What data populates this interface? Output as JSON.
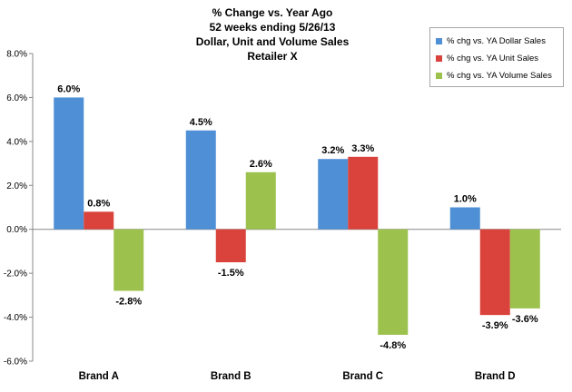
{
  "chart_data": {
    "type": "bar",
    "title_lines": [
      "% Change vs. Year Ago",
      "52 weeks ending 5/26/13",
      "Dollar, Unit and Volume Sales",
      "Retailer X"
    ],
    "categories": [
      "Brand A",
      "Brand B",
      "Brand C",
      "Brand D"
    ],
    "series": [
      {
        "name": "% chg vs. YA Dollar Sales",
        "values": [
          6.0,
          4.5,
          3.2,
          1.0
        ],
        "labels": [
          "6.0%",
          "4.5%",
          "3.2%",
          "1.0%"
        ],
        "color": "#4f8fd6"
      },
      {
        "name": "% chg vs. YA Unit Sales",
        "values": [
          0.8,
          -1.5,
          3.3,
          -3.9
        ],
        "labels": [
          "0.8%",
          "-1.5%",
          "3.3%",
          "-3.9%"
        ],
        "color": "#d9433b"
      },
      {
        "name": "% chg vs. YA Volume Sales",
        "values": [
          -2.8,
          2.6,
          -4.8,
          -3.6
        ],
        "labels": [
          "-2.8%",
          "2.6%",
          "-4.8%",
          "-3.6%"
        ],
        "color": "#9cc14d"
      }
    ],
    "ylim": [
      -6.0,
      8.0
    ],
    "yticks": [
      8.0,
      6.0,
      4.0,
      2.0,
      0.0,
      -2.0,
      -4.0,
      -6.0
    ],
    "ytick_labels": [
      "8.0%",
      "6.0%",
      "4.0%",
      "2.0%",
      "0.0%",
      "-2.0%",
      "-4.0%",
      "-6.0%"
    ],
    "xlabel": "",
    "ylabel": "",
    "grid": false,
    "legend_position": "top-right"
  }
}
